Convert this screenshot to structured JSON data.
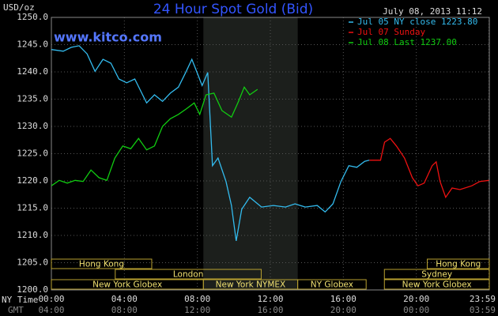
{
  "chart_data": {
    "type": "line",
    "title": "24 Hour Spot Gold (Bid)",
    "subtitle": "July 08, 2013 11:12",
    "watermark": "www.kitco.com",
    "y_label": "USD/oz",
    "x_label": "NY Time",
    "x2_label": "GMT",
    "xlim": [
      0,
      24
    ],
    "ylim": [
      1200,
      1250
    ],
    "grid": true,
    "xticks": [
      {
        "value": 0,
        "label": "00:00"
      },
      {
        "value": 4,
        "label": "04:00"
      },
      {
        "value": 8,
        "label": "08:00"
      },
      {
        "value": 12,
        "label": "12:00"
      },
      {
        "value": 16,
        "label": "16:00"
      },
      {
        "value": 20,
        "label": "20:00"
      },
      {
        "value": 23.98,
        "label": "23:59"
      }
    ],
    "x2_tick_labels": [
      "04:00",
      "08:00",
      "12:00",
      "16:00",
      "20:00",
      "00:00",
      "03:59"
    ],
    "yticks": [
      {
        "value": 1200,
        "label": "1200.0"
      },
      {
        "value": 1205,
        "label": "1205.0"
      },
      {
        "value": 1210,
        "label": "1210.0"
      },
      {
        "value": 1215,
        "label": "1215.0"
      },
      {
        "value": 1220,
        "label": "1220.0"
      },
      {
        "value": 1225,
        "label": "1225.0"
      },
      {
        "value": 1230,
        "label": "1230.0"
      },
      {
        "value": 1235,
        "label": "1235.0"
      },
      {
        "value": 1240,
        "label": "1240.0"
      },
      {
        "value": 1245,
        "label": "1245.0"
      },
      {
        "value": 1250,
        "label": "1250.0"
      }
    ],
    "shaded_range": [
      8.33,
      13.5
    ],
    "session_rows": [
      [
        {
          "name": "Hong Kong",
          "start": 0,
          "end": 5.5
        },
        {
          "name": "Hong Kong",
          "start": 20.6,
          "end": 24
        }
      ],
      [
        {
          "name": "London",
          "start": 3.5,
          "end": 11.5
        },
        {
          "name": "Sydney",
          "start": 18.25,
          "end": 24
        }
      ],
      [
        {
          "name": "New York Globex",
          "start": 0,
          "end": 8.33
        },
        {
          "name": "New York NYMEX",
          "start": 8.33,
          "end": 13.5
        },
        {
          "name": "NY Globex",
          "start": 13.5,
          "end": 17.25
        },
        {
          "name": "New York Globex",
          "start": 18.25,
          "end": 24
        }
      ]
    ],
    "series": [
      {
        "name": "Jul 05 NY close 1223.80",
        "color": "#33bbee",
        "x": [
          0,
          0.65,
          1.09,
          1.52,
          1.96,
          2.39,
          2.83,
          3.26,
          3.7,
          4.13,
          4.57,
          5,
          5.22,
          5.65,
          6.09,
          6.52,
          6.96,
          7.39,
          7.7,
          7.96,
          8.26,
          8.57,
          8.7,
          8.83,
          9.13,
          9.57,
          9.87,
          10.13,
          10.43,
          10.87,
          11.52,
          12.17,
          12.83,
          13.35,
          13.91,
          14.57,
          15,
          15.43,
          15.87,
          16.3,
          16.74,
          17.17,
          17.43
        ],
        "values": [
          1244.1,
          1243.8,
          1244.5,
          1244.8,
          1243.3,
          1240.1,
          1242.3,
          1241.6,
          1238.7,
          1238,
          1238.7,
          1235.8,
          1234.3,
          1235.8,
          1234.6,
          1236.1,
          1237.2,
          1240.1,
          1242.3,
          1240.1,
          1237.5,
          1239.9,
          1231.4,
          1222.8,
          1224.2,
          1219.9,
          1215.5,
          1209,
          1214.8,
          1217,
          1215.2,
          1215.5,
          1215.2,
          1215.8,
          1215.2,
          1215.5,
          1214.3,
          1215.8,
          1219.9,
          1222.8,
          1222.5,
          1223.6,
          1223.8
        ]
      },
      {
        "name": "Jul 07 Sunday",
        "color": "#ee1111",
        "x": [
          17.43,
          18.04,
          18.26,
          18.57,
          18.91,
          19.35,
          19.78,
          20.09,
          20.43,
          20.87,
          21.09,
          21.3,
          21.61,
          21.96,
          22.39,
          23.04,
          23.48,
          23.98
        ],
        "values": [
          1223.8,
          1223.8,
          1227.1,
          1227.8,
          1226.4,
          1224.2,
          1220.6,
          1219.1,
          1219.6,
          1222.8,
          1223.5,
          1219.9,
          1217,
          1218.7,
          1218.4,
          1219.1,
          1219.9,
          1220.1
        ]
      },
      {
        "name": "Jul 08 Last 1237.00",
        "color": "#11cc11",
        "x": [
          0,
          0.43,
          0.87,
          1.3,
          1.74,
          2.17,
          2.61,
          3.04,
          3.48,
          3.91,
          4.35,
          4.78,
          5.22,
          5.65,
          6.09,
          6.52,
          6.96,
          7.39,
          7.83,
          8.13,
          8.48,
          8.91,
          9.35,
          9.87,
          10.22,
          10.57,
          10.87,
          11.3
        ],
        "values": [
          1219.1,
          1220.1,
          1219.6,
          1220.1,
          1219.9,
          1222,
          1220.6,
          1220.1,
          1224.2,
          1226.4,
          1225.9,
          1227.8,
          1225.7,
          1226.4,
          1230,
          1231.4,
          1232.2,
          1233.2,
          1234.3,
          1232.2,
          1235.8,
          1236.1,
          1232.9,
          1231.7,
          1234.3,
          1237.2,
          1235.8,
          1236.8
        ]
      }
    ]
  }
}
